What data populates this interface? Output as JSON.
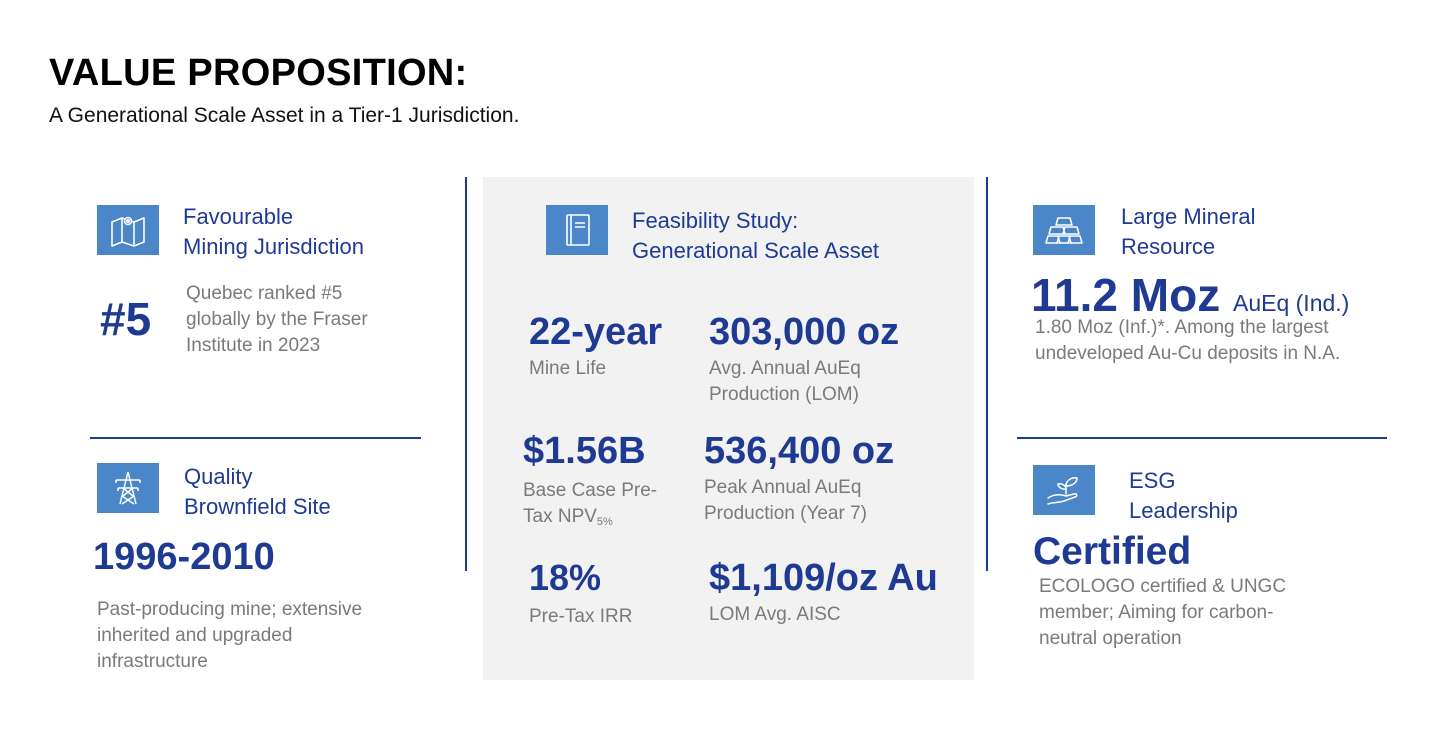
{
  "header": {
    "title": "VALUE PROPOSITION:",
    "subtitle": "A Generational Scale Asset in a Tier-1 Jurisdiction."
  },
  "jurisdiction": {
    "icon": "map-pin-icon",
    "heading_line1": "Favourable",
    "heading_line2": "Mining Jurisdiction",
    "value": "#5",
    "desc_line1": "Quebec ranked #5",
    "desc_line2": "globally by the Fraser",
    "desc_line3": "Institute in 2023"
  },
  "brownfield": {
    "icon": "power-tower-icon",
    "heading_line1": "Quality",
    "heading_line2": "Brownfield Site",
    "value": "1996-2010",
    "desc_line1": "Past-producing mine; extensive",
    "desc_line2": "inherited and upgraded",
    "desc_line3": "infrastructure"
  },
  "feasibility": {
    "icon": "notebook-icon",
    "heading_line1": "Feasibility Study:",
    "heading_line2": "Generational Scale Asset",
    "metrics": [
      {
        "value": "22-year",
        "label_line1": "Mine Life",
        "label_line2": ""
      },
      {
        "value": "303,000 oz",
        "label_line1": "Avg. Annual AuEq",
        "label_line2": "Production (LOM)"
      },
      {
        "value": "$1.56B",
        "label_line1": "Base Case Pre-",
        "label_line2": "Tax NPV",
        "label_sub": "5%"
      },
      {
        "value": "536,400 oz",
        "label_line1": "Peak Annual AuEq",
        "label_line2": "Production (Year 7)"
      },
      {
        "value": "18%",
        "label_line1": "Pre-Tax IRR",
        "label_line2": ""
      },
      {
        "value": "$1,109/oz Au",
        "label_line1": "LOM Avg. AISC",
        "label_line2": ""
      }
    ]
  },
  "resource": {
    "icon": "gold-bars-icon",
    "heading_line1": "Large Mineral",
    "heading_line2": "Resource",
    "value": "11.2 Moz",
    "value_unit": "AuEq (Ind.)",
    "desc_line1": "1.80 Moz (Inf.)*. Among the largest",
    "desc_line2": "undeveloped Au-Cu deposits in N.A."
  },
  "esg": {
    "icon": "hand-sprout-icon",
    "heading_line1": "ESG",
    "heading_line2": "Leadership",
    "value": "Certified",
    "desc_line1": "ECOLOGO certified & UNGC",
    "desc_line2": "member; Aiming for carbon-",
    "desc_line3": "neutral operation"
  },
  "colors": {
    "accent": "#1f3a93",
    "icon_bg": "#4a86c8",
    "panel_bg": "#f2f2f2",
    "muted_text": "#7a7a7a"
  }
}
